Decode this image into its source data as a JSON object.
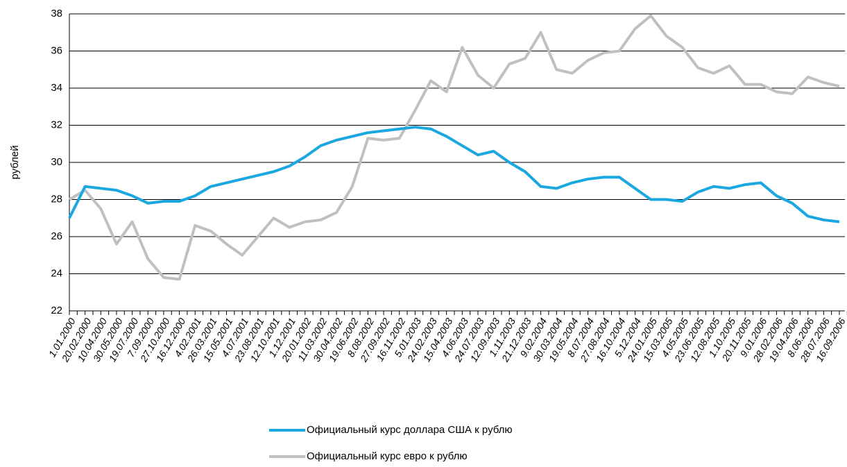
{
  "chart_data": {
    "type": "line",
    "ylabel": "рублей",
    "categories": [
      "1.01.2000",
      "20.02.2000",
      "10.04.2000",
      "30.05.2000",
      "19.07.2000",
      "7.09.2000",
      "27.10.2000",
      "16.12.2000",
      "4.02.2001",
      "26.03.2001",
      "15.05.2001",
      "4.07.2001",
      "23.08.2001",
      "12.10.2001",
      "1.12.2001",
      "20.01.2002",
      "11.03.2002",
      "30.04.2002",
      "19.06.2002",
      "8.08.2002",
      "27.09.2002",
      "16.11.2002",
      "5.01.2003",
      "24.02.2003",
      "15.04.2003",
      "4.06.2003",
      "24.07.2003",
      "12.09.2003",
      "1.11.2003",
      "21.12.2003",
      "9.02.2004",
      "30.03.2004",
      "19.05.2004",
      "8.07.2004",
      "27.08.2004",
      "16.10.2004",
      "5.12.2004",
      "24.01.2005",
      "15.03.2005",
      "4.05.2005",
      "23.06.2005",
      "12.08.2005",
      "1.10.2005",
      "20.11.2005",
      "9.01.2006",
      "28.02.2006",
      "19.04.2006",
      "8.06.2006",
      "28.07.2006",
      "16.09.2006"
    ],
    "series": [
      {
        "name": "Официальный курс доллара США к рублю",
        "color": "#1ba7e0",
        "values": [
          27.0,
          28.7,
          28.6,
          28.5,
          28.2,
          27.8,
          27.9,
          27.9,
          28.2,
          28.7,
          28.9,
          29.1,
          29.3,
          29.5,
          29.8,
          30.3,
          30.9,
          31.2,
          31.4,
          31.6,
          31.7,
          31.8,
          31.9,
          31.8,
          31.4,
          30.9,
          30.4,
          30.6,
          30.0,
          29.5,
          28.7,
          28.6,
          28.9,
          29.1,
          29.2,
          29.2,
          28.6,
          28.0,
          28.0,
          27.9,
          28.4,
          28.7,
          28.6,
          28.8,
          28.9,
          28.2,
          27.8,
          27.1,
          26.9,
          26.8
        ]
      },
      {
        "name": "Официальный курс евро к рублю",
        "color": "#c0c0c0",
        "values": [
          28.0,
          28.5,
          27.5,
          25.6,
          26.8,
          24.8,
          23.8,
          23.7,
          26.6,
          26.3,
          25.6,
          25.0,
          26.0,
          27.0,
          26.5,
          26.8,
          26.9,
          27.3,
          28.7,
          31.3,
          31.2,
          31.3,
          32.8,
          34.4,
          33.8,
          36.2,
          34.7,
          34.0,
          35.3,
          35.6,
          37.0,
          35.0,
          34.8,
          35.5,
          35.9,
          36.0,
          37.2,
          37.9,
          36.8,
          36.2,
          35.1,
          34.8,
          35.2,
          34.2,
          34.2,
          33.8,
          33.7,
          34.6,
          34.3,
          34.1
        ]
      }
    ],
    "ylim": [
      22,
      38
    ],
    "yticks": [
      22,
      24,
      26,
      28,
      30,
      32,
      34,
      36,
      38
    ],
    "grid": true
  }
}
